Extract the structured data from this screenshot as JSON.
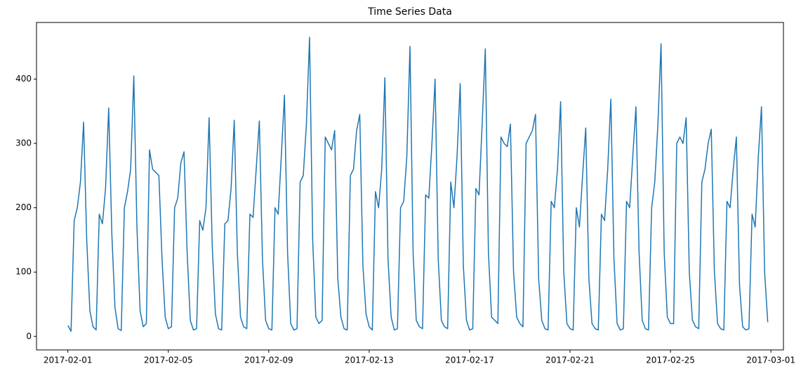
{
  "chart_data": {
    "type": "line",
    "title": "Time Series Data",
    "x": [
      "2017-02-01 00:00",
      "2017-02-01 03:00",
      "2017-02-01 06:00",
      "2017-02-01 09:00",
      "2017-02-01 12:00",
      "2017-02-01 15:00",
      "2017-02-01 18:00",
      "2017-02-01 21:00",
      "2017-02-02 00:00",
      "2017-02-02 03:00",
      "2017-02-02 06:00",
      "2017-02-02 09:00",
      "2017-02-02 12:00",
      "2017-02-02 15:00",
      "2017-02-02 18:00",
      "2017-02-02 21:00",
      "2017-02-03 00:00",
      "2017-02-03 03:00",
      "2017-02-03 06:00",
      "2017-02-03 09:00",
      "2017-02-03 12:00",
      "2017-02-03 15:00",
      "2017-02-03 18:00",
      "2017-02-03 21:00",
      "2017-02-04 00:00",
      "2017-02-04 03:00",
      "2017-02-04 06:00",
      "2017-02-04 09:00",
      "2017-02-04 12:00",
      "2017-02-04 15:00",
      "2017-02-04 18:00",
      "2017-02-04 21:00",
      "2017-02-05 00:00",
      "2017-02-05 03:00",
      "2017-02-05 06:00",
      "2017-02-05 09:00",
      "2017-02-05 12:00",
      "2017-02-05 15:00",
      "2017-02-05 18:00",
      "2017-02-05 21:00",
      "2017-02-06 00:00",
      "2017-02-06 03:00",
      "2017-02-06 06:00",
      "2017-02-06 09:00",
      "2017-02-06 12:00",
      "2017-02-06 15:00",
      "2017-02-06 18:00",
      "2017-02-06 21:00",
      "2017-02-07 00:00",
      "2017-02-07 03:00",
      "2017-02-07 06:00",
      "2017-02-07 09:00",
      "2017-02-07 12:00",
      "2017-02-07 15:00",
      "2017-02-07 18:00",
      "2017-02-07 21:00",
      "2017-02-08 00:00",
      "2017-02-08 03:00",
      "2017-02-08 06:00",
      "2017-02-08 09:00",
      "2017-02-08 12:00",
      "2017-02-08 15:00",
      "2017-02-08 18:00",
      "2017-02-08 21:00",
      "2017-02-09 00:00",
      "2017-02-09 03:00",
      "2017-02-09 06:00",
      "2017-02-09 09:00",
      "2017-02-09 12:00",
      "2017-02-09 15:00",
      "2017-02-09 18:00",
      "2017-02-09 21:00",
      "2017-02-10 00:00",
      "2017-02-10 03:00",
      "2017-02-10 06:00",
      "2017-02-10 09:00",
      "2017-02-10 12:00",
      "2017-02-10 15:00",
      "2017-02-10 18:00",
      "2017-02-10 21:00",
      "2017-02-11 00:00",
      "2017-02-11 03:00",
      "2017-02-11 06:00",
      "2017-02-11 09:00",
      "2017-02-11 12:00",
      "2017-02-11 15:00",
      "2017-02-11 18:00",
      "2017-02-11 21:00",
      "2017-02-12 00:00",
      "2017-02-12 03:00",
      "2017-02-12 06:00",
      "2017-02-12 09:00",
      "2017-02-12 12:00",
      "2017-02-12 15:00",
      "2017-02-12 18:00",
      "2017-02-12 21:00",
      "2017-02-13 00:00",
      "2017-02-13 03:00",
      "2017-02-13 06:00",
      "2017-02-13 09:00",
      "2017-02-13 12:00",
      "2017-02-13 15:00",
      "2017-02-13 18:00",
      "2017-02-13 21:00",
      "2017-02-14 00:00",
      "2017-02-14 03:00",
      "2017-02-14 06:00",
      "2017-02-14 09:00",
      "2017-02-14 12:00",
      "2017-02-14 15:00",
      "2017-02-14 18:00",
      "2017-02-14 21:00",
      "2017-02-15 00:00",
      "2017-02-15 03:00",
      "2017-02-15 06:00",
      "2017-02-15 09:00",
      "2017-02-15 12:00",
      "2017-02-15 15:00",
      "2017-02-15 18:00",
      "2017-02-15 21:00",
      "2017-02-16 00:00",
      "2017-02-16 03:00",
      "2017-02-16 06:00",
      "2017-02-16 09:00",
      "2017-02-16 12:00",
      "2017-02-16 15:00",
      "2017-02-16 18:00",
      "2017-02-16 21:00",
      "2017-02-17 00:00",
      "2017-02-17 03:00",
      "2017-02-17 06:00",
      "2017-02-17 09:00",
      "2017-02-17 12:00",
      "2017-02-17 15:00",
      "2017-02-17 18:00",
      "2017-02-17 21:00",
      "2017-02-18 00:00",
      "2017-02-18 03:00",
      "2017-02-18 06:00",
      "2017-02-18 09:00",
      "2017-02-18 12:00",
      "2017-02-18 15:00",
      "2017-02-18 18:00",
      "2017-02-18 21:00",
      "2017-02-19 00:00",
      "2017-02-19 03:00",
      "2017-02-19 06:00",
      "2017-02-19 09:00",
      "2017-02-19 12:00",
      "2017-02-19 15:00",
      "2017-02-19 18:00",
      "2017-02-19 21:00",
      "2017-02-20 00:00",
      "2017-02-20 03:00",
      "2017-02-20 06:00",
      "2017-02-20 09:00",
      "2017-02-20 12:00",
      "2017-02-20 15:00",
      "2017-02-20 18:00",
      "2017-02-20 21:00",
      "2017-02-21 00:00",
      "2017-02-21 03:00",
      "2017-02-21 06:00",
      "2017-02-21 09:00",
      "2017-02-21 12:00",
      "2017-02-21 15:00",
      "2017-02-21 18:00",
      "2017-02-21 21:00",
      "2017-02-22 00:00",
      "2017-02-22 03:00",
      "2017-02-22 06:00",
      "2017-02-22 09:00",
      "2017-02-22 12:00",
      "2017-02-22 15:00",
      "2017-02-22 18:00",
      "2017-02-22 21:00",
      "2017-02-23 00:00",
      "2017-02-23 03:00",
      "2017-02-23 06:00",
      "2017-02-23 09:00",
      "2017-02-23 12:00",
      "2017-02-23 15:00",
      "2017-02-23 18:00",
      "2017-02-23 21:00",
      "2017-02-24 00:00",
      "2017-02-24 03:00",
      "2017-02-24 06:00",
      "2017-02-24 09:00",
      "2017-02-24 12:00",
      "2017-02-24 15:00",
      "2017-02-24 18:00",
      "2017-02-24 21:00",
      "2017-02-25 00:00",
      "2017-02-25 03:00",
      "2017-02-25 06:00",
      "2017-02-25 09:00",
      "2017-02-25 12:00",
      "2017-02-25 15:00",
      "2017-02-25 18:00",
      "2017-02-25 21:00",
      "2017-02-26 00:00",
      "2017-02-26 03:00",
      "2017-02-26 06:00",
      "2017-02-26 09:00",
      "2017-02-26 12:00",
      "2017-02-26 15:00",
      "2017-02-26 18:00",
      "2017-02-26 21:00",
      "2017-02-27 00:00",
      "2017-02-27 03:00",
      "2017-02-27 06:00",
      "2017-02-27 09:00",
      "2017-02-27 12:00",
      "2017-02-27 15:00",
      "2017-02-27 18:00",
      "2017-02-27 21:00",
      "2017-02-28 00:00",
      "2017-02-28 03:00",
      "2017-02-28 06:00",
      "2017-02-28 09:00",
      "2017-02-28 12:00",
      "2017-02-28 15:00",
      "2017-02-28 18:00",
      "2017-02-28 21:00"
    ],
    "values": [
      17,
      8,
      180,
      200,
      240,
      333,
      150,
      40,
      15,
      10,
      190,
      175,
      230,
      355,
      160,
      45,
      12,
      9,
      200,
      225,
      260,
      405,
      170,
      40,
      15,
      20,
      290,
      260,
      255,
      250,
      120,
      30,
      12,
      15,
      200,
      215,
      270,
      287,
      130,
      25,
      10,
      12,
      180,
      165,
      200,
      340,
      140,
      35,
      12,
      10,
      175,
      180,
      230,
      336,
      130,
      30,
      15,
      12,
      190,
      185,
      260,
      335,
      120,
      25,
      12,
      10,
      200,
      190,
      280,
      375,
      130,
      20,
      10,
      12,
      240,
      250,
      330,
      465,
      150,
      30,
      20,
      25,
      310,
      300,
      290,
      320,
      90,
      30,
      12,
      10,
      250,
      260,
      320,
      345,
      110,
      35,
      15,
      10,
      225,
      200,
      260,
      402,
      120,
      30,
      10,
      12,
      200,
      210,
      280,
      451,
      130,
      25,
      15,
      12,
      220,
      215,
      300,
      400,
      120,
      25,
      15,
      12,
      240,
      200,
      280,
      393,
      110,
      25,
      10,
      12,
      230,
      220,
      330,
      447,
      130,
      30,
      25,
      20,
      310,
      300,
      295,
      330,
      100,
      30,
      20,
      15,
      300,
      310,
      320,
      345,
      90,
      25,
      12,
      10,
      210,
      200,
      260,
      365,
      100,
      20,
      12,
      10,
      200,
      170,
      250,
      324,
      90,
      20,
      12,
      10,
      190,
      180,
      260,
      369,
      120,
      20,
      10,
      12,
      210,
      200,
      280,
      357,
      130,
      25,
      12,
      10,
      200,
      240,
      330,
      455,
      130,
      30,
      20,
      20,
      300,
      310,
      300,
      340,
      100,
      25,
      15,
      12,
      240,
      260,
      300,
      322,
      100,
      20,
      12,
      10,
      210,
      200,
      260,
      310,
      80,
      15,
      10,
      12,
      190,
      170,
      280,
      357,
      100,
      22
    ],
    "color": "#1f77b4",
    "xlim": [
      "2017-01-30 18:00",
      "2017-03-01 12:00"
    ],
    "xticks": [
      "2017-02-01",
      "2017-02-05",
      "2017-02-09",
      "2017-02-13",
      "2017-02-17",
      "2017-02-21",
      "2017-02-25",
      "2017-03-01"
    ],
    "ylim": [
      -21,
      488
    ],
    "yticks": [
      0,
      100,
      200,
      300,
      400
    ]
  }
}
